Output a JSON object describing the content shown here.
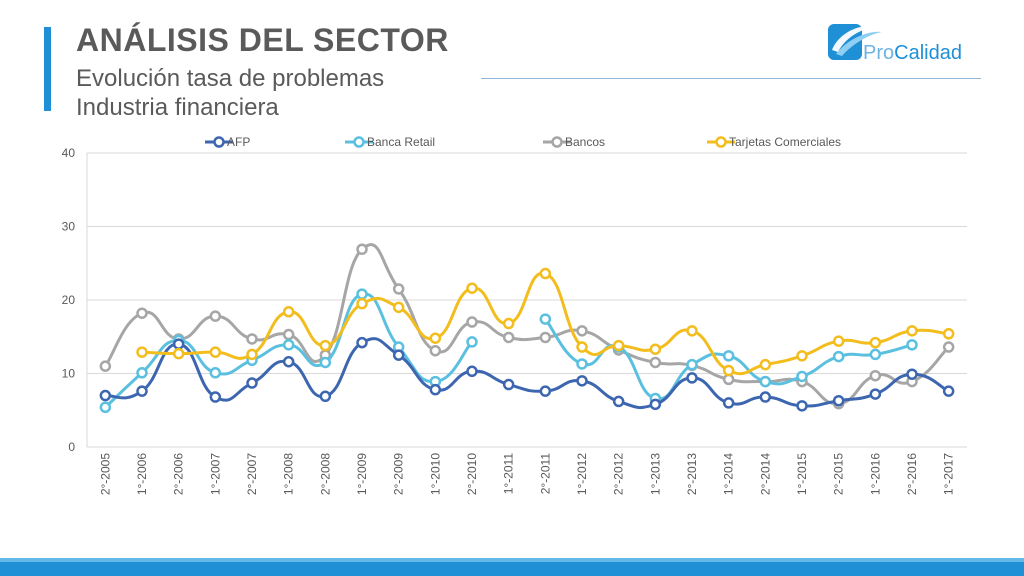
{
  "header": {
    "title": "ANÁLISIS DEL SECTOR",
    "subtitle_line1": "Evolución tasa de problemas",
    "subtitle_line2": "Industria financiera"
  },
  "logo": {
    "text_pro": "Pro",
    "text_calidad": "Calidad",
    "icon": "procalidad-logo-icon"
  },
  "colors": {
    "accent": "#1f8fd6",
    "title": "#5a5a5a"
  },
  "chart_data": {
    "type": "line",
    "x": [
      "2°-2005",
      "1°-2006",
      "2°-2006",
      "1°-2007",
      "2°-2007",
      "1°-2008",
      "2°-2008",
      "1°-2009",
      "2°-2009",
      "1°-2010",
      "2°-2010",
      "1°-2011",
      "2°-2011",
      "1°-2012",
      "2°-2012",
      "1°-2013",
      "2°-2013",
      "1°-2014",
      "2°-2014",
      "1°-2015",
      "2°-2015",
      "1°-2016",
      "2°-2016",
      "1°-2017"
    ],
    "ylim": [
      0,
      40
    ],
    "yticks": [
      0,
      10,
      20,
      30,
      40
    ],
    "grid": true,
    "legend_position": "top",
    "smooth": true,
    "series": [
      {
        "name": "AFP",
        "color": "#3d66b0",
        "values": [
          7.0,
          7.6,
          14.0,
          6.8,
          8.7,
          11.6,
          6.9,
          14.2,
          12.5,
          7.8,
          10.3,
          8.5,
          7.6,
          9.0,
          6.2,
          5.8,
          9.4,
          6.0,
          6.8,
          5.6,
          6.3,
          7.2,
          9.9,
          7.6
        ]
      },
      {
        "name": "Banca Retail",
        "color": "#5bc0e0",
        "values": [
          5.4,
          10.1,
          14.5,
          10.1,
          11.8,
          13.9,
          11.5,
          20.8,
          13.6,
          8.9,
          14.3,
          null,
          17.4,
          11.3,
          13.6,
          6.6,
          11.2,
          12.4,
          8.9,
          9.6,
          12.3,
          12.6,
          13.9,
          null
        ]
      },
      {
        "name": "Bancos",
        "color": "#a6a6a6",
        "values": [
          11.0,
          18.2,
          14.7,
          17.8,
          14.7,
          15.3,
          12.5,
          26.9,
          21.5,
          13.1,
          17.0,
          14.9,
          14.9,
          15.8,
          13.2,
          11.5,
          11.1,
          9.2,
          8.9,
          8.9,
          5.9,
          9.7,
          8.9,
          13.6
        ]
      },
      {
        "name": "Tarjetas Comerciales",
        "color": "#f2bd1d",
        "values": [
          null,
          12.9,
          12.7,
          12.9,
          12.6,
          18.4,
          13.8,
          19.5,
          19.0,
          14.8,
          21.6,
          16.8,
          23.6,
          13.6,
          13.8,
          13.3,
          15.8,
          10.4,
          11.2,
          12.4,
          14.4,
          14.2,
          15.8,
          15.4
        ]
      }
    ]
  }
}
